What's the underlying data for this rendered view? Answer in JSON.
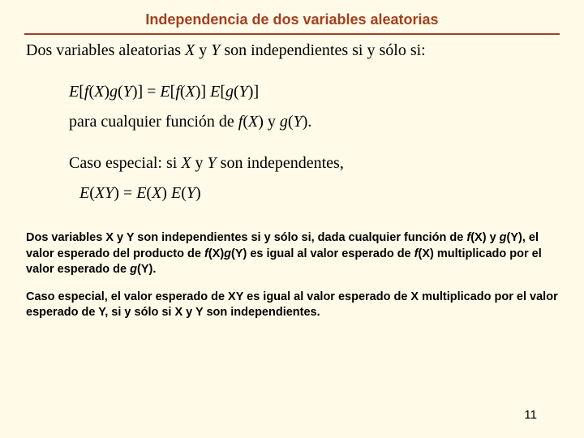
{
  "colors": {
    "background": "#fffbe8",
    "accent": "#a33f1f",
    "text": "#000000"
  },
  "typography": {
    "title_font": "Arial",
    "title_size_pt": 18,
    "body_font": "Times New Roman",
    "body_size_pt": 20,
    "bottom_font": "Arial",
    "bottom_size_pt": 14.5
  },
  "title": "Independencia de dos variables aleatorias",
  "lead_pre": "Dos variables aleatorias ",
  "lead_X": "X",
  "lead_mid1": " y ",
  "lead_Y": "Y",
  "lead_post": " son independientes si y sólo si:",
  "eq1": {
    "a": "E",
    "b": "[",
    "c": "f",
    "d": "(",
    "e": "X",
    "f": ")",
    "g": "g",
    "h": "(",
    "i": "Y",
    "j": ")]  = ",
    "k": "E",
    "l": "[",
    "m": "f",
    "n": "(",
    "o": "X",
    "p": ")] ",
    "q": "E",
    "r": "[",
    "s": "g",
    "t": "(",
    "u": "Y",
    "v": ")]"
  },
  "para1_pre": "para cualquier función de  ",
  "para1_f": "f",
  "para1_a": "(",
  "para1_X": "X",
  "para1_b": ") y ",
  "para1_g": "g",
  "para1_c": "(",
  "para1_Y": "Y",
  "para1_d": ").",
  "caso_pre": "Caso especial:  si ",
  "caso_X": "X",
  "caso_mid": " y ",
  "caso_Y": "Y",
  "caso_post": " son independentes,",
  "eq2": {
    "a": "E",
    "b": "(",
    "c": "XY",
    "d": ")  =  ",
    "e": "E",
    "f": "(",
    "g": "X",
    "h": ") ",
    "i": "E",
    "j": "(",
    "k": "Y",
    "l": ")"
  },
  "b1": {
    "t1": "Dos variables X y Y son independientes si y sólo si, dada cualquier función de ",
    "f": "f",
    "t2": "(X) y ",
    "g": "g",
    "t3": "(Y), el valor esperado del producto de ",
    "f2": "f",
    "t4": "(X)",
    "g2": "g",
    "t5": "(Y) es igual al valor esperado de ",
    "f3": "f",
    "t6": "(X) multiplicado por el valor esperado de ",
    "g3": "g",
    "t7": "(Y)."
  },
  "b2": "Caso especial, el valor esperado de XY es igual  al valor esperado de X multiplicado por el valor esperado de Y, si y sólo si X y Y son independientes.",
  "page": "11"
}
